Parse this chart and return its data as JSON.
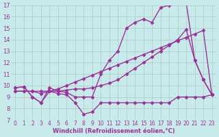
{
  "xlabel": "Windchill (Refroidissement éolien,°C)",
  "bg_color": "#c8eaea",
  "grid_color": "#b0c8c8",
  "line_color": "#993399",
  "xmin": 0,
  "xmax": 23,
  "ymin": 7,
  "ymax": 17,
  "xtick_labels": [
    "0",
    "1",
    "2",
    "3",
    "4",
    "5",
    "6",
    "7",
    "8",
    "9",
    "10",
    "11",
    "12",
    "13",
    "14",
    "15",
    "16",
    "17",
    "18",
    "19",
    "20",
    "21",
    "22",
    "23"
  ],
  "ytick_labels": [
    "7",
    "8",
    "9",
    "10",
    "11",
    "12",
    "13",
    "14",
    "15",
    "16",
    "17"
  ],
  "series": [
    {
      "x": [
        0,
        1,
        2,
        3,
        4,
        5,
        6,
        7,
        8,
        9,
        10,
        11,
        12,
        13,
        14,
        15,
        16,
        17,
        18,
        19,
        20,
        21,
        22,
        23
      ],
      "y": [
        9.8,
        9.9,
        9.0,
        8.5,
        9.5,
        9.3,
        9.2,
        8.5,
        7.5,
        7.7,
        8.5,
        8.5,
        8.5,
        8.5,
        8.5,
        8.5,
        8.5,
        8.5,
        8.5,
        9.0,
        9.0,
        9.0,
        9.0,
        9.2
      ],
      "marker": "D",
      "markersize": 2.5,
      "linewidth": 1.0,
      "linestyle": "-"
    },
    {
      "x": [
        0,
        1,
        2,
        3,
        4,
        5,
        6,
        7,
        8,
        9,
        10,
        11,
        12,
        13,
        14,
        15,
        16,
        17,
        18,
        19,
        20,
        21,
        22,
        23
      ],
      "y": [
        9.8,
        9.9,
        9.0,
        8.5,
        9.8,
        9.5,
        9.4,
        9.0,
        9.0,
        9.0,
        11.0,
        12.2,
        13.0,
        15.0,
        15.5,
        15.8,
        15.5,
        16.8,
        17.0,
        17.2,
        17.2,
        12.2,
        10.5,
        9.2
      ],
      "marker": "D",
      "markersize": 2.5,
      "linewidth": 1.0,
      "linestyle": "-"
    },
    {
      "x": [
        0,
        1,
        2,
        3,
        4,
        5,
        6,
        7,
        8,
        9,
        10,
        11,
        12,
        13,
        14,
        15,
        16,
        17,
        18,
        19,
        20,
        21,
        22,
        23
      ],
      "y": [
        9.5,
        9.5,
        9.5,
        9.5,
        9.5,
        9.7,
        10.0,
        10.3,
        10.6,
        10.9,
        11.2,
        11.5,
        11.8,
        12.1,
        12.4,
        12.7,
        13.0,
        13.3,
        13.6,
        13.9,
        14.2,
        14.5,
        14.8,
        9.2
      ],
      "marker": "D",
      "markersize": 2.5,
      "linewidth": 1.0,
      "linestyle": "-"
    },
    {
      "x": [
        0,
        1,
        2,
        3,
        4,
        5,
        6,
        7,
        8,
        9,
        10,
        11,
        12,
        13,
        14,
        15,
        16,
        17,
        18,
        19,
        20,
        21,
        22,
        23
      ],
      "y": [
        9.5,
        9.5,
        9.5,
        9.3,
        9.5,
        9.5,
        9.6,
        9.7,
        9.7,
        9.8,
        10.0,
        10.2,
        10.5,
        11.0,
        11.5,
        12.0,
        12.5,
        13.0,
        13.5,
        14.0,
        14.9,
        12.2,
        10.5,
        9.2
      ],
      "marker": "D",
      "markersize": 2.5,
      "linewidth": 1.0,
      "linestyle": "-"
    }
  ]
}
